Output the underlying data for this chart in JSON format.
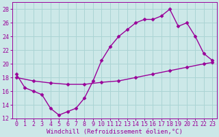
{
  "x_top": [
    0,
    1,
    2,
    3,
    4,
    5,
    6,
    7,
    8,
    9,
    10,
    11,
    12,
    13,
    14,
    15,
    16,
    17,
    18,
    19,
    20,
    21,
    22,
    23
  ],
  "y_top": [
    18.5,
    16.5,
    16.0,
    15.5,
    13.5,
    12.5,
    13.0,
    13.5,
    15.0,
    17.5,
    20.5,
    22.5,
    24.0,
    25.0,
    26.0,
    26.5,
    26.5,
    27.0,
    28.0,
    25.5,
    26.0,
    24.0,
    21.5,
    20.5
  ],
  "x_bottom": [
    0,
    2,
    4,
    6,
    8,
    10,
    12,
    14,
    16,
    18,
    20,
    22,
    23
  ],
  "y_bottom": [
    18.0,
    17.5,
    17.2,
    17.0,
    17.0,
    17.3,
    17.5,
    18.0,
    18.5,
    19.0,
    19.5,
    20.0,
    20.2
  ],
  "line_color": "#990099",
  "bg_color": "#cce8e8",
  "grid_color": "#aad4d4",
  "xlabel": "Windchill (Refroidissement éolien,°C)",
  "xlim": [
    -0.5,
    23.5
  ],
  "ylim": [
    12,
    29
  ],
  "yticks": [
    12,
    14,
    16,
    18,
    20,
    22,
    24,
    26,
    28
  ],
  "xticks": [
    0,
    1,
    2,
    3,
    4,
    5,
    6,
    7,
    8,
    9,
    10,
    11,
    12,
    13,
    14,
    15,
    16,
    17,
    18,
    19,
    20,
    21,
    22,
    23
  ],
  "marker": "D",
  "markersize": 2.5,
  "linewidth": 1.0,
  "xlabel_fontsize": 6.5,
  "tick_fontsize": 6.0
}
